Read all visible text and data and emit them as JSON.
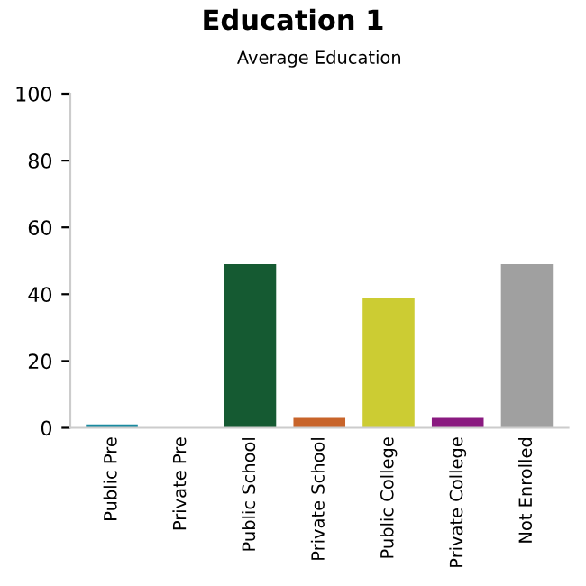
{
  "chart_data": {
    "type": "bar",
    "title": "Education 1",
    "subtitle": "Average Education",
    "categories": [
      "Public Pre",
      "Private Pre",
      "Public School",
      "Private School",
      "Public College",
      "Private College",
      "Not Enrolled"
    ],
    "values": [
      1,
      0,
      49,
      3,
      39,
      3,
      49
    ],
    "colors": [
      "#1a8aa0",
      "#7a1515",
      "#155a32",
      "#c8642a",
      "#cccc33",
      "#8a1a80",
      "#a0a0a0"
    ],
    "ylim": [
      0,
      100
    ],
    "yticks": [
      0,
      20,
      40,
      60,
      80,
      100
    ],
    "grid": false
  }
}
